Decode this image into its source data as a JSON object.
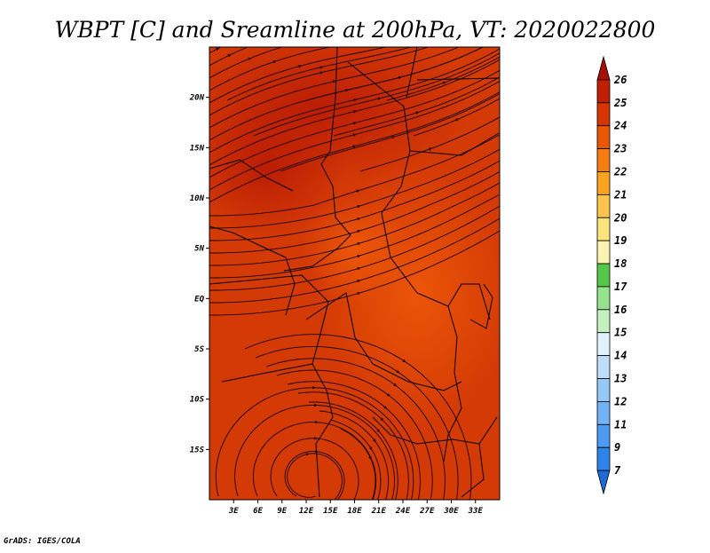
{
  "chart_data": {
    "type": "heatmap",
    "title": "WBPT [C] and Sreamline at 200hPa, VT: 2020022800",
    "variable": "WBPT",
    "units": "C",
    "level": "200hPa",
    "valid_time": "2020022800",
    "overlay": "streamlines",
    "x_axis": {
      "range": [
        0,
        36
      ],
      "ticks": [
        3,
        6,
        9,
        12,
        15,
        18,
        21,
        24,
        27,
        30,
        33
      ],
      "tick_labels": [
        "3E",
        "6E",
        "9E",
        "12E",
        "15E",
        "18E",
        "21E",
        "24E",
        "27E",
        "30E",
        "33E"
      ]
    },
    "y_axis": {
      "range": [
        -20,
        25
      ],
      "ticks": [
        20,
        15,
        10,
        5,
        0,
        -5,
        -10,
        -15
      ],
      "tick_labels": [
        "20N",
        "15N",
        "10N",
        "5N",
        "EQ",
        "5S",
        "10S",
        "15S"
      ]
    },
    "colorbar": {
      "levels": [
        7,
        9,
        11,
        12,
        13,
        14,
        15,
        16,
        17,
        18,
        19,
        20,
        21,
        22,
        23,
        24,
        25,
        26
      ],
      "labels": [
        "7",
        "9",
        "11",
        "12",
        "13",
        "14",
        "15",
        "16",
        "17",
        "18",
        "19",
        "20",
        "21",
        "22",
        "23",
        "24",
        "25",
        "26"
      ],
      "colors": [
        "#1e6ad8",
        "#2f84ea",
        "#4e9af2",
        "#72b2f5",
        "#97c9f8",
        "#bfdefb",
        "#e2f2fd",
        "#c6efc0",
        "#96e38e",
        "#55c84a",
        "#fbf4b0",
        "#fde37c",
        "#fcc44c",
        "#f9a31e",
        "#f47c10",
        "#ec5608",
        "#d83505",
        "#c22003",
        "#a80d02"
      ],
      "extend": "both",
      "orientation": "vertical",
      "placement": "right"
    },
    "field_color_range": [
      "23",
      "26"
    ],
    "credit": "GrADS: IGES/COLA"
  }
}
